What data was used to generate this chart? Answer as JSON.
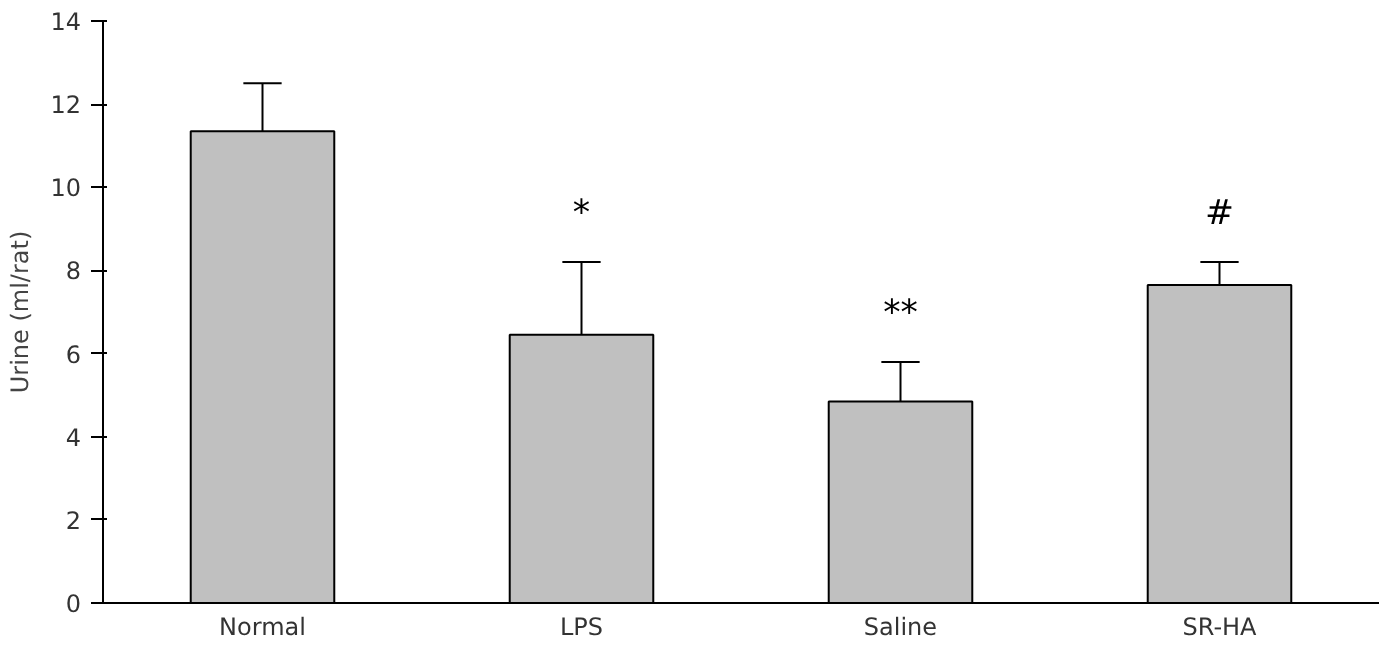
{
  "chart_data": {
    "type": "bar",
    "ylabel": "Urine (ml/rat)",
    "categories": [
      "Normal",
      "LPS",
      "Saline",
      "SR-HA"
    ],
    "values": [
      11.35,
      6.45,
      4.85,
      7.65
    ],
    "errors": [
      [
        11.35,
        12.5
      ],
      [
        6.45,
        8.2
      ],
      [
        4.85,
        5.8
      ],
      [
        7.65,
        8.2
      ]
    ],
    "color": "#c0c0c0",
    "ylim": [
      0,
      14
    ],
    "yticks": [
      0,
      2,
      4,
      6,
      8,
      10,
      12,
      14
    ],
    "grid": false,
    "annotations": [
      {
        "text": "*",
        "x": "LPS",
        "y": 8.2
      },
      {
        "text": "**",
        "x": "Saline",
        "y": 5.8
      },
      {
        "text": "#",
        "x": "SR-HA",
        "y": 8.2
      }
    ]
  }
}
